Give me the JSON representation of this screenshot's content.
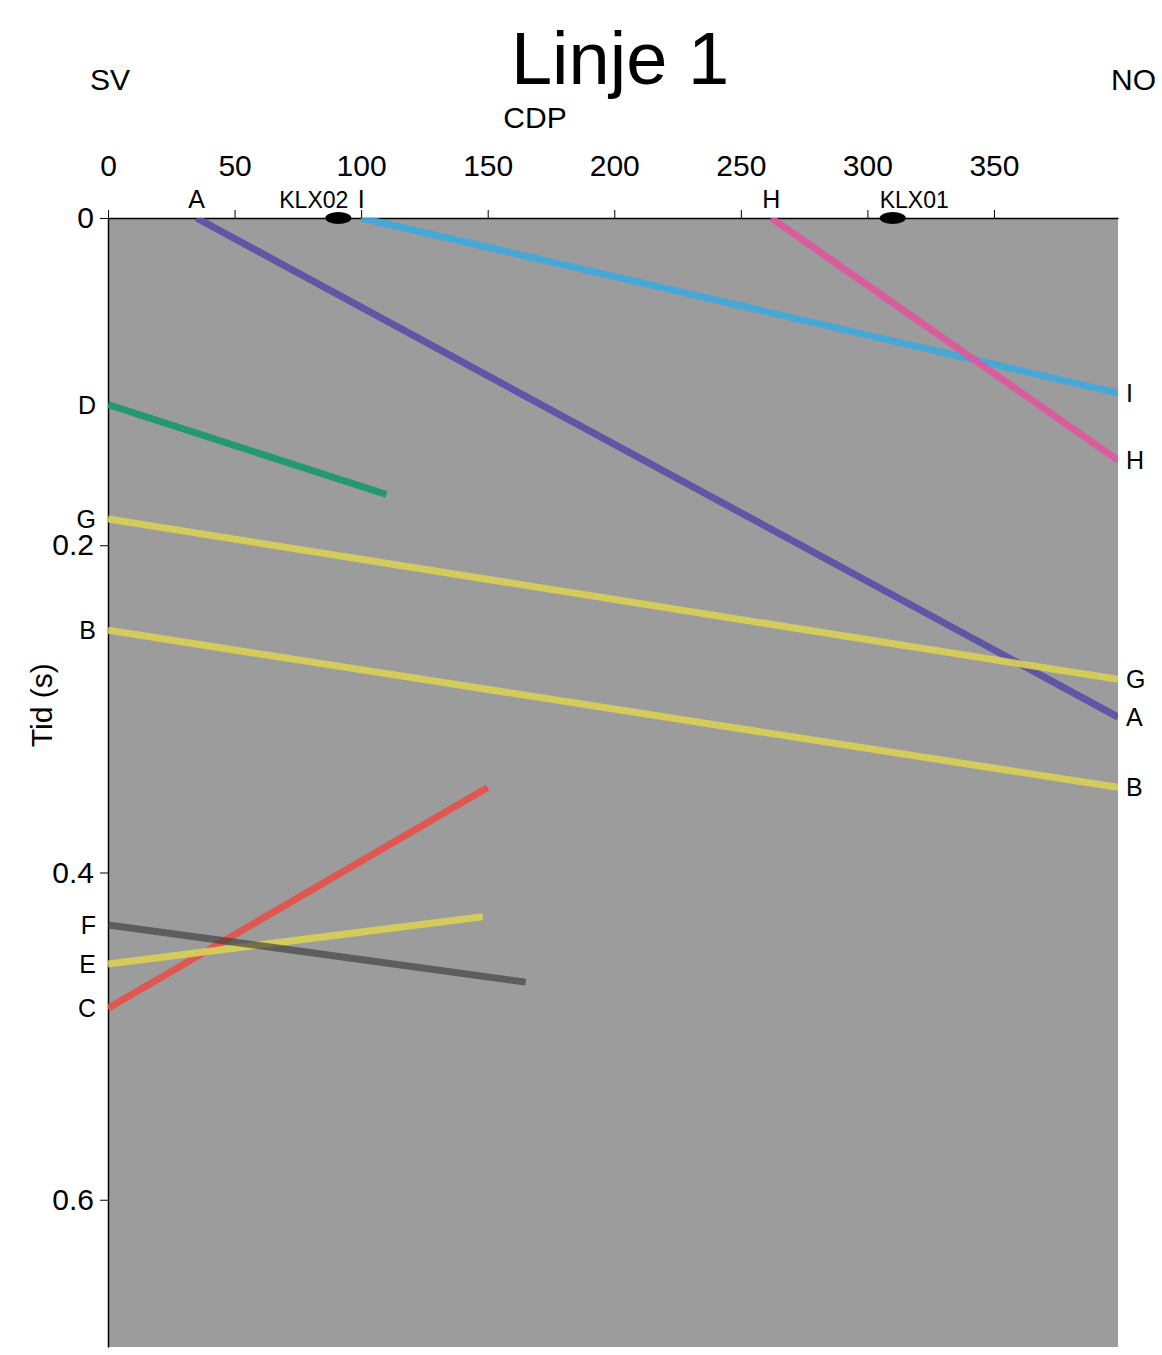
{
  "chart_data": {
    "type": "line",
    "title": "Linje 1",
    "x_label": "CDP",
    "y_label": "Tid (s)",
    "direction_labels": [
      "SV",
      "NO"
    ],
    "xlim": [
      0,
      399
    ],
    "xticks": [
      0,
      50,
      100,
      150,
      200,
      250,
      300,
      350
    ],
    "ylim": [
      0,
      0.69
    ],
    "yticks": [
      0,
      0.2,
      0.4,
      0.6
    ],
    "grid": false,
    "legend": false,
    "boreholes": [
      {
        "name": "KLX02",
        "x": 91
      },
      {
        "name": "KLX01",
        "x": 310
      }
    ],
    "series": [
      {
        "name": "A",
        "color": "#5b4ea6",
        "x": [
          35,
          399
        ],
        "values": [
          0,
          0.305
        ]
      },
      {
        "name": "I",
        "color": "#3ea8dc",
        "x": [
          100,
          399
        ],
        "values": [
          0,
          0.107
        ]
      },
      {
        "name": "H",
        "color": "#e0559c",
        "x": [
          262,
          399
        ],
        "values": [
          0,
          0.148
        ]
      },
      {
        "name": "D",
        "color": "#17996b",
        "x": [
          0,
          110
        ],
        "values": [
          0.114,
          0.169
        ]
      },
      {
        "name": "G",
        "color": "#d9d257",
        "x": [
          0,
          399
        ],
        "values": [
          0.184,
          0.282
        ]
      },
      {
        "name": "B",
        "color": "#d9d257",
        "x": [
          0,
          399
        ],
        "values": [
          0.252,
          0.348
        ]
      },
      {
        "name": "C",
        "color": "#e8504a",
        "x": [
          0,
          150
        ],
        "values": [
          0.483,
          0.348
        ]
      },
      {
        "name": "E",
        "color": "#d9d257",
        "x": [
          0,
          148
        ],
        "values": [
          0.456,
          0.427
        ]
      },
      {
        "name": "F",
        "color": "#333333",
        "x": [
          0,
          165
        ],
        "values": [
          0.432,
          0.467
        ]
      }
    ]
  }
}
